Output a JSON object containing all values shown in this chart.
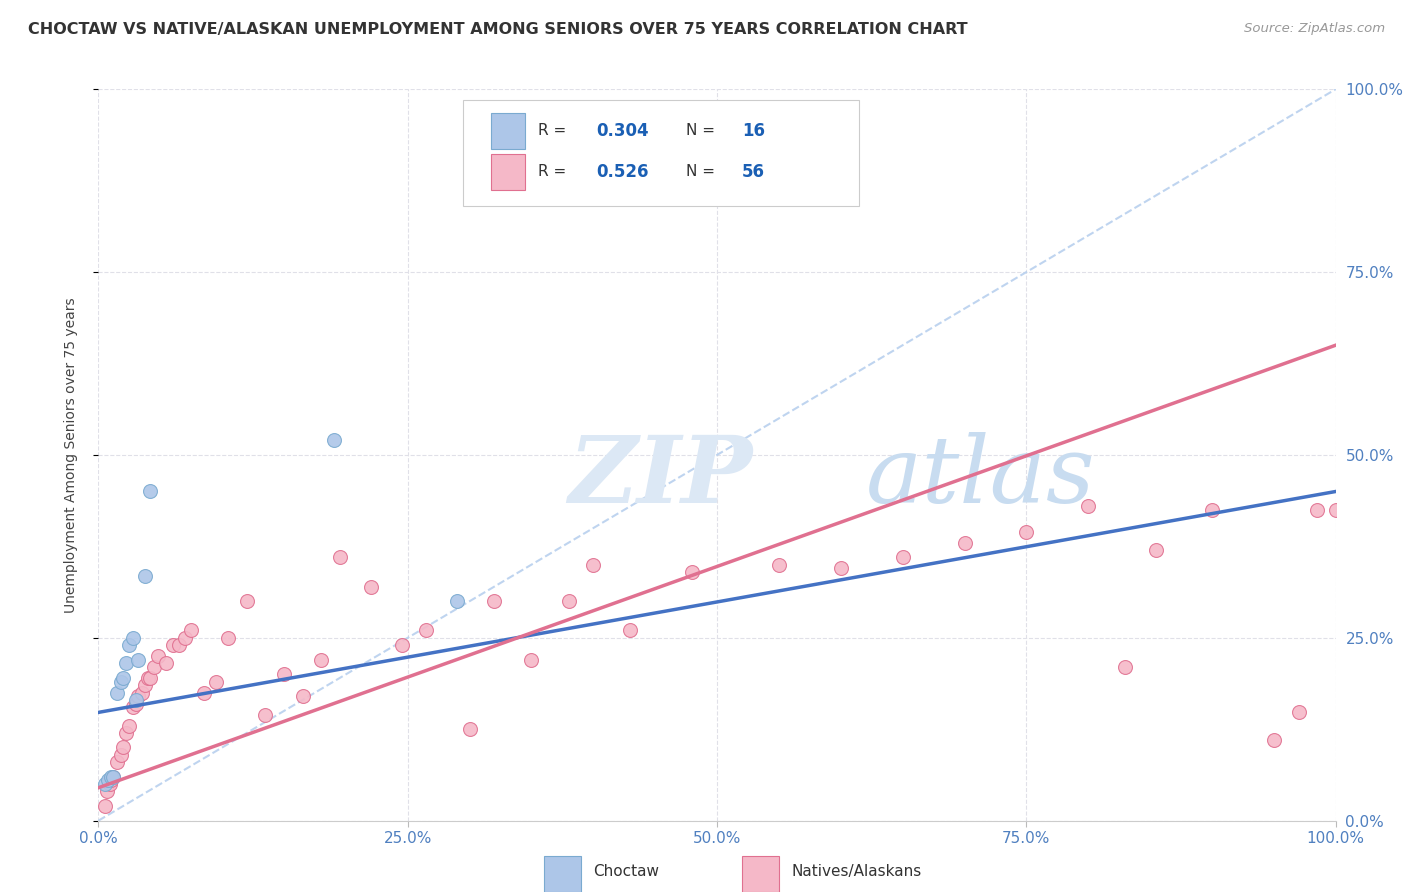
{
  "title": "CHOCTAW VS NATIVE/ALASKAN UNEMPLOYMENT AMONG SENIORS OVER 75 YEARS CORRELATION CHART",
  "source": "Source: ZipAtlas.com",
  "ylabel": "Unemployment Among Seniors over 75 years",
  "xlim": [
    0,
    1.0
  ],
  "ylim": [
    0,
    1.0
  ],
  "tick_vals": [
    0,
    0.25,
    0.5,
    0.75,
    1.0
  ],
  "choctaw_color": "#adc6e8",
  "choctaw_edge": "#7aaad0",
  "native_color": "#f5b8c8",
  "native_edge": "#e07090",
  "blue_line_color": "#4472c4",
  "pink_line_color": "#e07090",
  "dashed_line_color": "#b8d0ee",
  "watermark_zip_color": "#dce8f5",
  "watermark_atlas_color": "#c8dcf0",
  "legend_value_color": "#1a5fb4",
  "choctaw_R": 0.304,
  "choctaw_N": 16,
  "native_R": 0.526,
  "native_N": 56,
  "choctaw_x": [
    0.005,
    0.008,
    0.01,
    0.012,
    0.015,
    0.018,
    0.02,
    0.022,
    0.025,
    0.028,
    0.03,
    0.032,
    0.038,
    0.042,
    0.19,
    0.29
  ],
  "choctaw_y": [
    0.05,
    0.055,
    0.06,
    0.06,
    0.175,
    0.19,
    0.195,
    0.215,
    0.24,
    0.25,
    0.165,
    0.22,
    0.335,
    0.45,
    0.52,
    0.3
  ],
  "native_x": [
    0.005,
    0.007,
    0.009,
    0.01,
    0.012,
    0.015,
    0.018,
    0.02,
    0.022,
    0.025,
    0.028,
    0.03,
    0.032,
    0.035,
    0.038,
    0.04,
    0.042,
    0.045,
    0.048,
    0.055,
    0.06,
    0.065,
    0.07,
    0.075,
    0.085,
    0.095,
    0.105,
    0.12,
    0.135,
    0.15,
    0.165,
    0.18,
    0.195,
    0.22,
    0.245,
    0.265,
    0.3,
    0.32,
    0.35,
    0.38,
    0.4,
    0.43,
    0.48,
    0.55,
    0.6,
    0.65,
    0.7,
    0.75,
    0.8,
    0.83,
    0.855,
    0.9,
    0.95,
    0.97,
    0.985,
    1.0
  ],
  "native_y": [
    0.02,
    0.04,
    0.05,
    0.055,
    0.06,
    0.08,
    0.09,
    0.1,
    0.12,
    0.13,
    0.155,
    0.16,
    0.17,
    0.175,
    0.185,
    0.195,
    0.195,
    0.21,
    0.225,
    0.215,
    0.24,
    0.24,
    0.25,
    0.26,
    0.175,
    0.19,
    0.25,
    0.3,
    0.145,
    0.2,
    0.17,
    0.22,
    0.36,
    0.32,
    0.24,
    0.26,
    0.125,
    0.3,
    0.22,
    0.3,
    0.35,
    0.26,
    0.34,
    0.35,
    0.345,
    0.36,
    0.38,
    0.395,
    0.43,
    0.21,
    0.37,
    0.425,
    0.11,
    0.148,
    0.425,
    0.425
  ],
  "choctaw_trend": [
    0.0,
    1.0,
    0.148,
    0.45
  ],
  "native_trend": [
    0.0,
    1.0,
    0.045,
    0.65
  ],
  "background_color": "#ffffff",
  "grid_color": "#e0e0e8",
  "marker_size": 100,
  "tick_color": "#5080c0"
}
